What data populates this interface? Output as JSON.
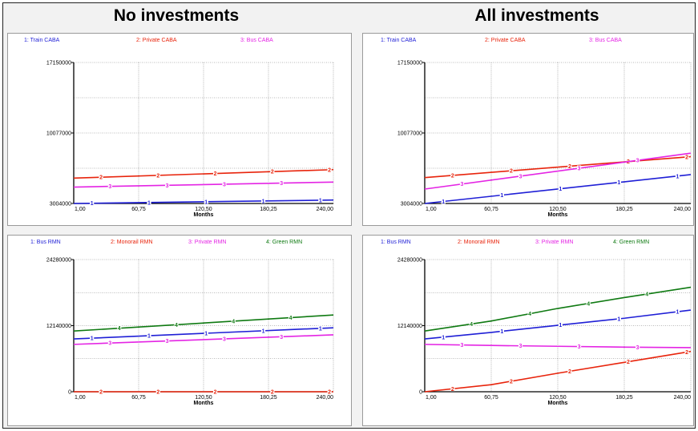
{
  "headers": {
    "left": "No investments",
    "right": "All investments"
  },
  "colors": {
    "blue": "#1f1fd6",
    "red": "#e8240c",
    "magenta": "#e424e4",
    "green": "#0f7a12"
  },
  "chart_data": [
    {
      "type": "line",
      "panel": "top-left",
      "xlabel": "Months",
      "ylim": [
        3004000,
        17150000
      ],
      "yticks": [
        "17150000",
        "10077000",
        "3004000"
      ],
      "xticks": [
        "1,00",
        "60,75",
        "120,50",
        "180,25",
        "240,00"
      ],
      "x": [
        1,
        240
      ],
      "series": [
        {
          "name": "1: Train CABA",
          "num": "1",
          "color": "blue",
          "values": [
            3004000,
            3350000
          ]
        },
        {
          "name": "2: Private CABA",
          "num": "2",
          "color": "red",
          "values": [
            5550000,
            6400000
          ]
        },
        {
          "name": "3: Bus CABA",
          "num": "3",
          "color": "magenta",
          "values": [
            4650000,
            5150000
          ]
        }
      ]
    },
    {
      "type": "line",
      "panel": "top-right",
      "xlabel": "Months",
      "ylim": [
        3004000,
        17150000
      ],
      "yticks": [
        "17150000",
        "10077000",
        "3004000"
      ],
      "xticks": [
        "1,00",
        "60,75",
        "120,50",
        "180,25",
        "240,00"
      ],
      "x": [
        1,
        240
      ],
      "series": [
        {
          "name": "1: Train CABA",
          "num": "1",
          "color": "blue",
          "values": [
            3004000,
            5900000
          ]
        },
        {
          "name": "2: Private CABA",
          "num": "2",
          "color": "red",
          "values": [
            5600000,
            7700000
          ]
        },
        {
          "name": "3: Bus CABA",
          "num": "3",
          "color": "magenta",
          "values": [
            4450000,
            8050000
          ]
        }
      ]
    },
    {
      "type": "line",
      "panel": "bottom-left",
      "xlabel": "Months",
      "ylim": [
        0,
        24280000
      ],
      "yticks": [
        "24280000",
        "12140000",
        "0"
      ],
      "xticks": [
        "1,00",
        "60,75",
        "120,50",
        "180,25",
        "240,00"
      ],
      "x": [
        1,
        240
      ],
      "series": [
        {
          "name": "1: Bus RMN",
          "num": "1",
          "color": "blue",
          "values": [
            9700000,
            11750000
          ]
        },
        {
          "name": "2: Monorail RMN",
          "num": "2",
          "color": "red",
          "values": [
            0,
            0
          ]
        },
        {
          "name": "3: Private RMN",
          "num": "3",
          "color": "magenta",
          "values": [
            8700000,
            10450000
          ]
        },
        {
          "name": "4: Green RMN",
          "num": "4",
          "color": "green",
          "values": [
            11150000,
            14100000
          ]
        }
      ]
    },
    {
      "type": "line",
      "panel": "bottom-right",
      "xlabel": "Months",
      "ylim": [
        0,
        24280000
      ],
      "yticks": [
        "24280000",
        "12140000",
        "0"
      ],
      "xticks": [
        "1,00",
        "60,75",
        "120,50",
        "180,25",
        "240,00"
      ],
      "x": [
        1,
        60.75,
        120.5,
        180.25,
        240
      ],
      "series": [
        {
          "name": "1: Bus RMN",
          "num": "1",
          "color": "blue",
          "values": [
            9700000,
            10900000,
            12200000,
            13500000,
            15000000
          ]
        },
        {
          "name": "2: Monorail RMN",
          "num": "2",
          "color": "red",
          "values": [
            0,
            1300000,
            3400000,
            5400000,
            7400000
          ]
        },
        {
          "name": "3: Private RMN",
          "num": "3",
          "color": "magenta",
          "values": [
            8700000,
            8500000,
            8350000,
            8200000,
            8100000
          ]
        },
        {
          "name": "4: Green RMN",
          "num": "4",
          "color": "green",
          "values": [
            11150000,
            13000000,
            15300000,
            17300000,
            19200000
          ]
        }
      ]
    }
  ]
}
